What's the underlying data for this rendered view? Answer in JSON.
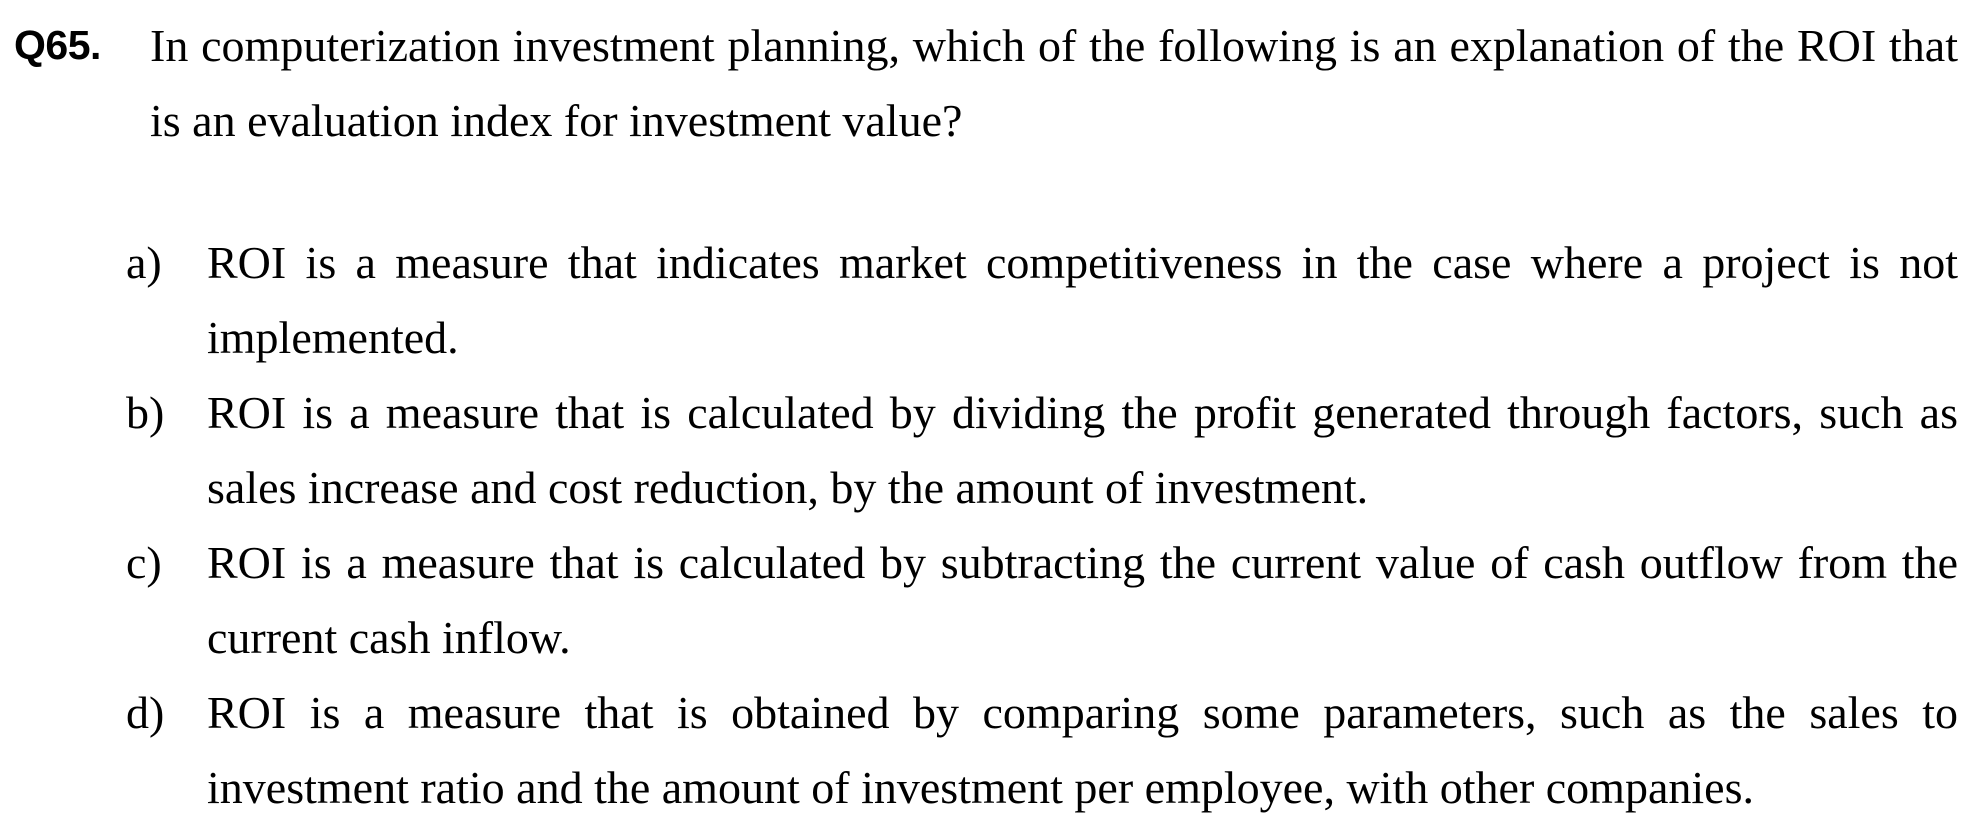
{
  "question": {
    "number": "Q65.",
    "text": "In computerization investment planning, which of the following is an explanation of the ROI that is an evaluation index for investment value?"
  },
  "options": [
    {
      "label": "a)",
      "text": "ROI is a measure that indicates market competitiveness in the case where a project is not implemented."
    },
    {
      "label": "b)",
      "text": "ROI is a measure that is calculated by dividing the profit generated through factors, such as sales increase and cost reduction, by the amount of investment."
    },
    {
      "label": "c)",
      "text": "ROI is a measure that is calculated by subtracting the current value of cash outflow from the current cash inflow."
    },
    {
      "label": "d)",
      "text": "ROI is a measure that is obtained by comparing some parameters, such as the sales to investment ratio and the amount of investment per employee, with other companies."
    }
  ]
}
